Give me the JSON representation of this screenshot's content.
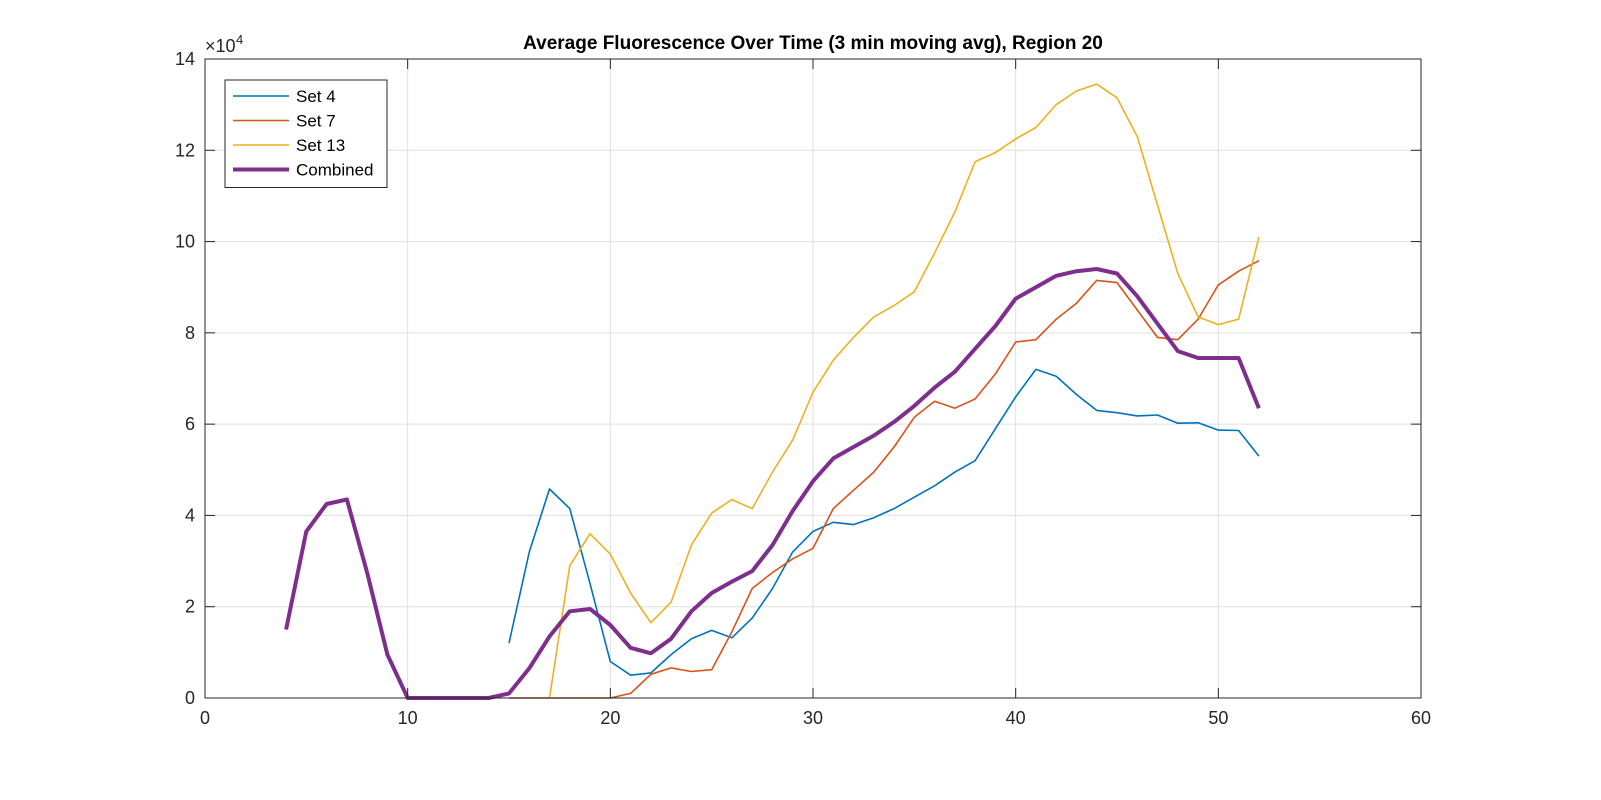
{
  "chart_data": {
    "type": "line",
    "title": "Average Fluorescence Over Time (3 min moving avg), Region 20",
    "xlabel": "",
    "ylabel": "",
    "xlim": [
      0,
      60
    ],
    "ylim": [
      0,
      140000
    ],
    "xticks": [
      0,
      10,
      20,
      30,
      40,
      50,
      60
    ],
    "yticks": [
      0,
      20000,
      40000,
      60000,
      80000,
      100000,
      120000,
      140000
    ],
    "ytick_labels": [
      "0",
      "2",
      "4",
      "6",
      "8",
      "10",
      "12",
      "14"
    ],
    "y_exponent": {
      "base": "×10",
      "power": "4"
    },
    "grid": true,
    "legend_position": "top-left",
    "series": [
      {
        "name": "Set 4",
        "color": "#0072BD",
        "line_width": "thin",
        "x": [
          15,
          16,
          17,
          18,
          19,
          20,
          21,
          22,
          23,
          24,
          25,
          26,
          27,
          28,
          29,
          30,
          31,
          32,
          33,
          34,
          35,
          36,
          37,
          38,
          39,
          40,
          41,
          42,
          43,
          44,
          45,
          46,
          47,
          48,
          49,
          50,
          51,
          52
        ],
        "y": [
          12000,
          32000,
          45800,
          41500,
          25000,
          8000,
          5000,
          5500,
          9500,
          13000,
          14800,
          13200,
          17500,
          24000,
          32000,
          36500,
          38500,
          38000,
          39500,
          41500,
          44000,
          46500,
          49500,
          52000,
          59000,
          66000,
          72000,
          70500,
          66500,
          63000,
          62500,
          61800,
          62000,
          60200,
          60300,
          58700,
          58600,
          53000
        ]
      },
      {
        "name": "Set 7",
        "color": "#D95319",
        "line_width": "thin",
        "x": [
          15,
          16,
          17,
          18,
          19,
          20,
          21,
          22,
          23,
          24,
          25,
          26,
          27,
          28,
          29,
          30,
          31,
          32,
          33,
          34,
          35,
          36,
          37,
          38,
          39,
          40,
          41,
          42,
          43,
          44,
          45,
          46,
          47,
          48,
          49,
          50,
          51,
          52
        ],
        "y": [
          0,
          0,
          0,
          0,
          0,
          0,
          1000,
          5200,
          6600,
          5800,
          6200,
          14500,
          24000,
          27500,
          30500,
          32800,
          41500,
          45500,
          49500,
          55000,
          61500,
          65000,
          63500,
          65500,
          71000,
          78000,
          78500,
          83000,
          86500,
          91500,
          91000,
          85000,
          79000,
          78500,
          83000,
          90500,
          93500,
          95800
        ]
      },
      {
        "name": "Set 13",
        "color": "#EDB120",
        "line_width": "thin",
        "x": [
          17,
          18,
          19,
          20,
          21,
          22,
          23,
          24,
          25,
          26,
          27,
          28,
          29,
          30,
          31,
          32,
          33,
          34,
          35,
          36,
          37,
          38,
          39,
          40,
          41,
          42,
          43,
          44,
          45,
          46,
          47,
          48,
          49,
          50,
          51,
          52
        ],
        "y": [
          0,
          29000,
          36000,
          31500,
          23000,
          16500,
          21000,
          33500,
          40500,
          43500,
          41500,
          49500,
          56500,
          67000,
          74000,
          79000,
          83500,
          86000,
          89000,
          97500,
          106500,
          117500,
          119500,
          122500,
          125000,
          130000,
          133000,
          134500,
          131500,
          123000,
          108000,
          93000,
          83500,
          81800,
          83000,
          101000
        ]
      },
      {
        "name": "Combined",
        "color": "#7E2F8E",
        "line_width": "thick",
        "x": [
          4,
          5,
          6,
          7,
          8,
          9,
          10,
          11,
          12,
          13,
          14,
          15,
          16,
          17,
          18,
          19,
          20,
          21,
          22,
          23,
          24,
          25,
          26,
          27,
          28,
          29,
          30,
          31,
          32,
          33,
          34,
          35,
          36,
          37,
          38,
          39,
          40,
          41,
          42,
          43,
          44,
          45,
          46,
          47,
          48,
          49,
          50,
          51,
          52
        ],
        "y": [
          15000,
          36500,
          42500,
          43500,
          27500,
          9500,
          0,
          0,
          0,
          0,
          0,
          1000,
          6500,
          13500,
          19000,
          19500,
          16000,
          11000,
          9800,
          13000,
          19000,
          23000,
          25500,
          27800,
          33500,
          41000,
          47500,
          52500,
          55000,
          57500,
          60500,
          64000,
          68000,
          71500,
          76500,
          81500,
          87500,
          90000,
          92500,
          93500,
          94000,
          93000,
          88000,
          82000,
          76000,
          74500,
          74500,
          74500,
          63500
        ]
      }
    ]
  }
}
